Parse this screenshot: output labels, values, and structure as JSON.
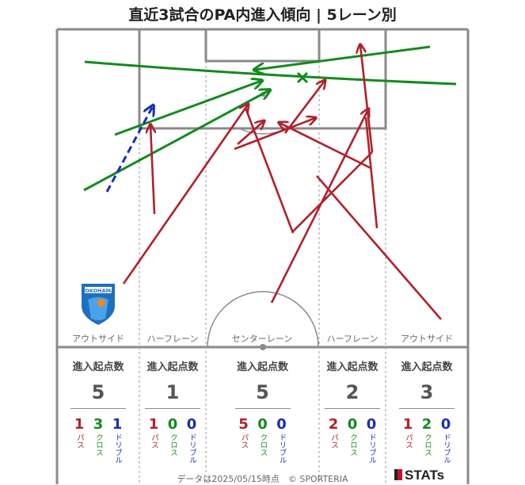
{
  "title": "直近3試合のPA内進入傾向 | 5レーン別",
  "lanes": [
    {
      "name": "アウトサイド",
      "header": "進入起点数",
      "total": "5",
      "pass": "1",
      "cross": "3",
      "dribble": "1"
    },
    {
      "name": "ハーフレーン",
      "header": "進入起点数",
      "total": "1",
      "pass": "1",
      "cross": "0",
      "dribble": "0"
    },
    {
      "name": "センターレーン",
      "header": "進入起点数",
      "total": "5",
      "pass": "5",
      "cross": "0",
      "dribble": "0"
    },
    {
      "name": "ハーフレーン",
      "header": "進入起点数",
      "total": "2",
      "pass": "2",
      "cross": "0",
      "dribble": "0"
    },
    {
      "name": "アウトサイド",
      "header": "進入起点数",
      "total": "3",
      "pass": "1",
      "cross": "2",
      "dribble": "0"
    }
  ],
  "labels": {
    "pass": "パス",
    "cross": "クロス",
    "dribble": "ドリブル"
  },
  "logo_text": "YOKOHAMA",
  "footer": "データは2025/05/15時点　© SPORTERIA",
  "brand": "STATs",
  "colors": {
    "pass": "#b2202a",
    "cross": "#128a1e",
    "dribble": "#1a2fb0",
    "pitch_line": "#8a8a8a"
  }
}
